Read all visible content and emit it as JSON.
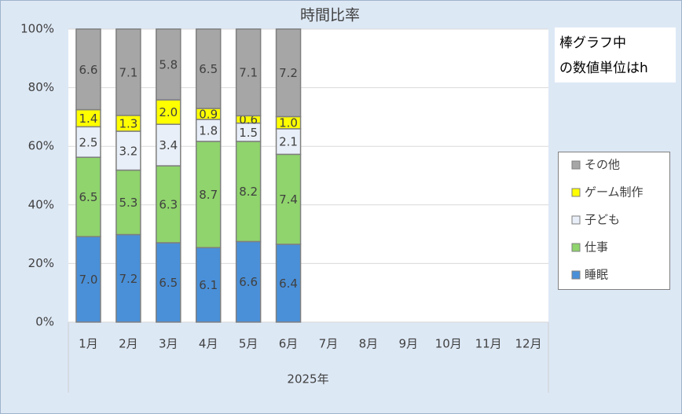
{
  "chart_data": {
    "type": "bar",
    "stacked": true,
    "percent_stacked": true,
    "title": "時間比率",
    "categories": [
      "1月",
      "2月",
      "3月",
      "4月",
      "5月",
      "6月",
      "7月",
      "8月",
      "9月",
      "10月",
      "11月",
      "12月"
    ],
    "x_group_label": "2025年",
    "series": [
      {
        "name": "睡眠",
        "color": "#4a90d9",
        "values": [
          7.0,
          7.2,
          6.5,
          6.1,
          6.6,
          6.4,
          null,
          null,
          null,
          null,
          null,
          null
        ],
        "value_labels": [
          "7.0",
          "7.2",
          "6.5",
          "6.1",
          "6.6",
          "6.4",
          null,
          null,
          null,
          null,
          null,
          null
        ]
      },
      {
        "name": "仕事",
        "color": "#8fd46c",
        "values": [
          6.5,
          5.3,
          6.3,
          8.7,
          8.2,
          7.4,
          null,
          null,
          null,
          null,
          null,
          null
        ],
        "value_labels": [
          "6.5",
          "5.3",
          "6.3",
          "8.7",
          "8.2",
          "7.4",
          null,
          null,
          null,
          null,
          null,
          null
        ]
      },
      {
        "name": "子ども",
        "color": "#e9eff8",
        "values": [
          2.5,
          3.2,
          3.4,
          1.8,
          1.5,
          2.1,
          null,
          null,
          null,
          null,
          null,
          null
        ],
        "value_labels": [
          "2.5",
          "3.2",
          "3.4",
          "1.8",
          "1.5",
          "2.1",
          null,
          null,
          null,
          null,
          null,
          null
        ]
      },
      {
        "name": "ゲーム制作",
        "color": "#ffff00",
        "values": [
          1.4,
          1.3,
          2.0,
          0.9,
          0.6,
          1.0,
          null,
          null,
          null,
          null,
          null,
          null
        ],
        "value_labels": [
          "1.4",
          "1.3",
          "2.0",
          "0.9",
          "0.6",
          "1.0",
          null,
          null,
          null,
          null,
          null,
          null
        ]
      },
      {
        "name": "その他",
        "color": "#a6a6a6",
        "values": [
          6.6,
          7.1,
          5.8,
          6.5,
          7.1,
          7.2,
          null,
          null,
          null,
          null,
          null,
          null
        ],
        "value_labels": [
          "6.6",
          "7.1",
          "5.8",
          "6.5",
          "7.1",
          "7.2",
          null,
          null,
          null,
          null,
          null,
          null
        ]
      }
    ],
    "ylim": [
      0,
      100
    ],
    "yticks": [
      {
        "value": 0,
        "label": "0%"
      },
      {
        "value": 20,
        "label": "20%"
      },
      {
        "value": 40,
        "label": "40%"
      },
      {
        "value": 60,
        "label": "60%"
      },
      {
        "value": 80,
        "label": "80%"
      },
      {
        "value": 100,
        "label": "100%"
      }
    ],
    "grid": true,
    "legend": "right",
    "annotations": [
      "棒グラフ中",
      "の数値単位はh"
    ]
  }
}
